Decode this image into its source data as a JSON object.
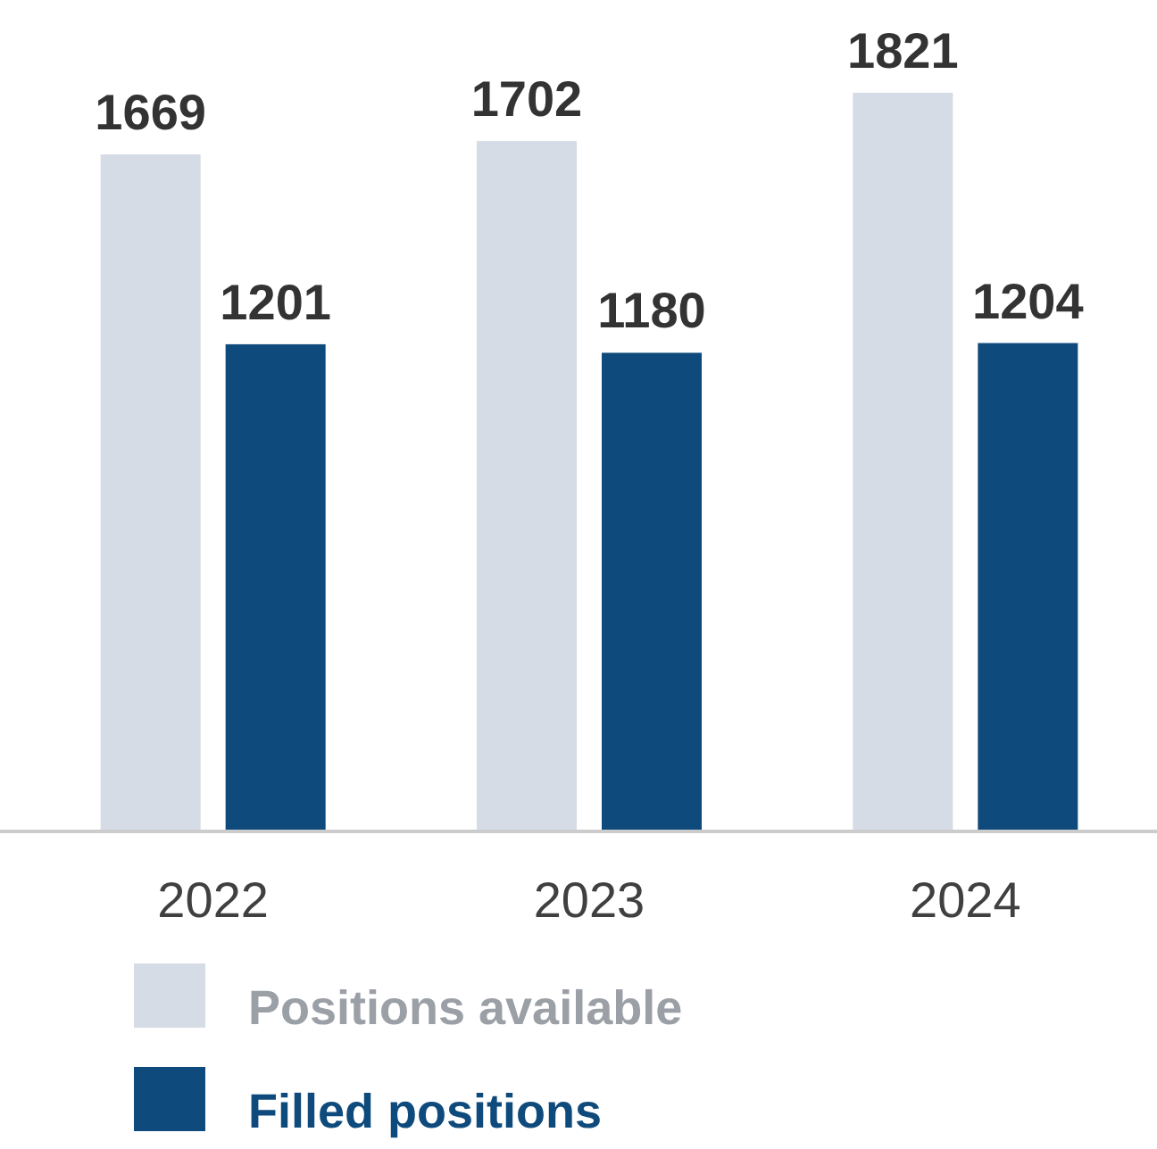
{
  "chart_data": {
    "type": "bar",
    "categories": [
      "2022",
      "2023",
      "2024"
    ],
    "series": [
      {
        "name": "Positions available",
        "color": "#d5dce6",
        "values": [
          1669,
          1702,
          1821
        ]
      },
      {
        "name": "Filled positions",
        "color": "#0f4a7c",
        "values": [
          1201,
          1180,
          1204
        ]
      }
    ],
    "data_labels": true,
    "legend": "bottom",
    "relative": false
  }
}
